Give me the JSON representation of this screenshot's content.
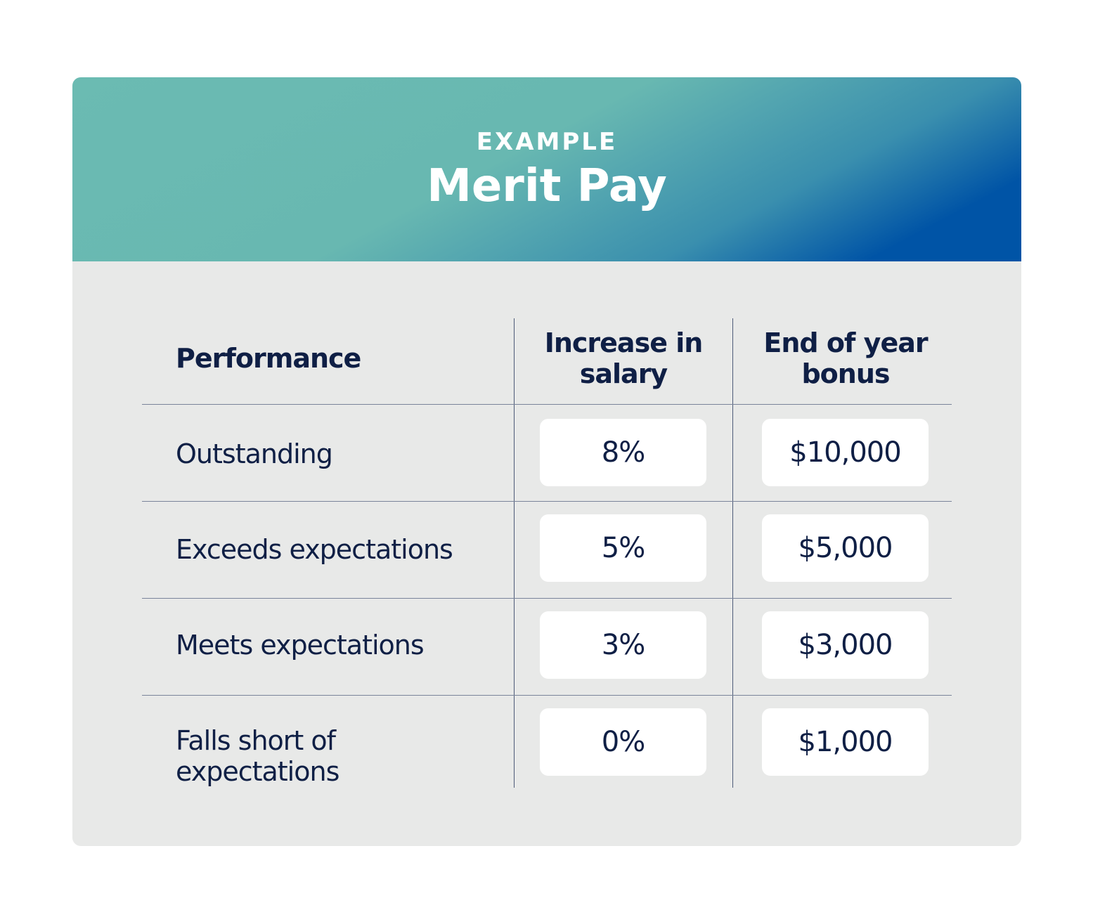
{
  "header": {
    "eyebrow": "EXAMPLE",
    "title": "Merit Pay"
  },
  "colors": {
    "gradient_start": "#6bbbb2",
    "gradient_end": "#0054a6",
    "body_bg": "#e8e9e8",
    "text": "#0f1f45"
  },
  "table": {
    "columns": [
      "Performance",
      "Increase in salary",
      "End of year bonus"
    ],
    "rows": [
      {
        "performance": "Outstanding",
        "salary": "8%",
        "bonus": "$10,000"
      },
      {
        "performance": "Exceeds expectations",
        "salary": "5%",
        "bonus": "$5,000"
      },
      {
        "performance": "Meets expectations",
        "salary": "3%",
        "bonus": "$3,000"
      },
      {
        "performance": "Falls short of expectations",
        "salary": "0%",
        "bonus": "$1,000"
      }
    ]
  }
}
